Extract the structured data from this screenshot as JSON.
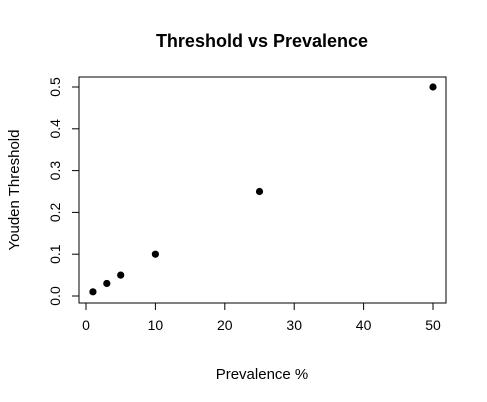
{
  "chart_data": {
    "type": "scatter",
    "title": "Threshold vs Prevalence",
    "xlabel": "Prevalence %",
    "ylabel": "Youden Threshold",
    "x": [
      1,
      3,
      5,
      10,
      25,
      50
    ],
    "y": [
      0.01,
      0.03,
      0.05,
      0.1,
      0.25,
      0.5
    ],
    "xlim": [
      0,
      50
    ],
    "ylim": [
      0,
      0.5
    ],
    "xticks": [
      0,
      10,
      20,
      30,
      40,
      50
    ],
    "xtick_labels": [
      "0",
      "10",
      "20",
      "30",
      "40",
      "50"
    ],
    "yticks": [
      0,
      0.1,
      0.2,
      0.3,
      0.4,
      0.5
    ],
    "ytick_labels": [
      "0.0",
      "0.1",
      "0.2",
      "0.3",
      "0.4",
      "0.5"
    ],
    "grid": false,
    "marker_color": "#000000"
  }
}
